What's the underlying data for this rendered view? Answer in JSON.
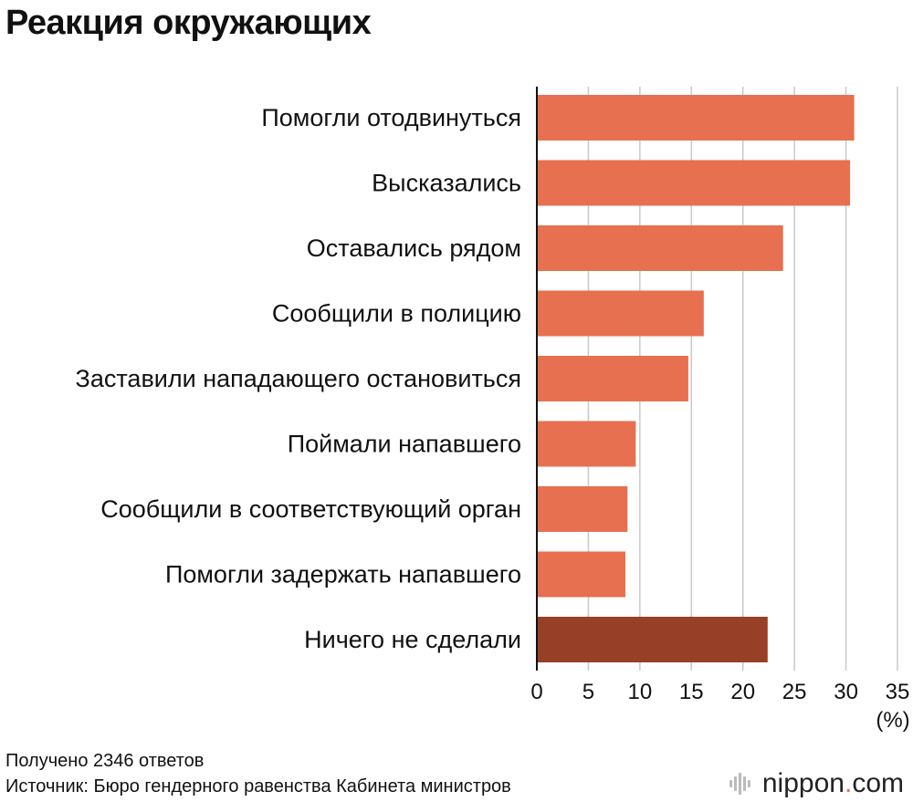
{
  "title": "Реакция окружающих",
  "footer": {
    "responses": "Получено 2346 ответов",
    "source": "Источник: Бюро гендерного равенства Кабинета министров"
  },
  "brand": {
    "name_start": "nippon",
    "dot": ".",
    "name_end": "com",
    "icon": "nippon-sunburst-logo-icon"
  },
  "colors": {
    "bar": "#e6704f",
    "bar_highlight": "#973f27",
    "grid": "#c8c8c8",
    "axis": "#111111"
  },
  "chart_data": {
    "type": "bar",
    "orientation": "horizontal",
    "categories": [
      "Помогли отодвинуться",
      "Высказались",
      "Оставались рядом",
      "Сообщили в полицию",
      "Заставили нападающего остановиться",
      "Поймали напавшего",
      "Сообщили в соответствующий орган",
      "Помогли задержать напавшего",
      "Ничего не сделали"
    ],
    "values": [
      30.8,
      30.4,
      23.9,
      16.2,
      14.7,
      9.6,
      8.8,
      8.6,
      22.4
    ],
    "highlight_index": 8,
    "xlim": [
      0,
      35
    ],
    "xticks": [
      0,
      5,
      10,
      15,
      20,
      25,
      30,
      35
    ],
    "xlabel": "(%)",
    "grid": true
  }
}
